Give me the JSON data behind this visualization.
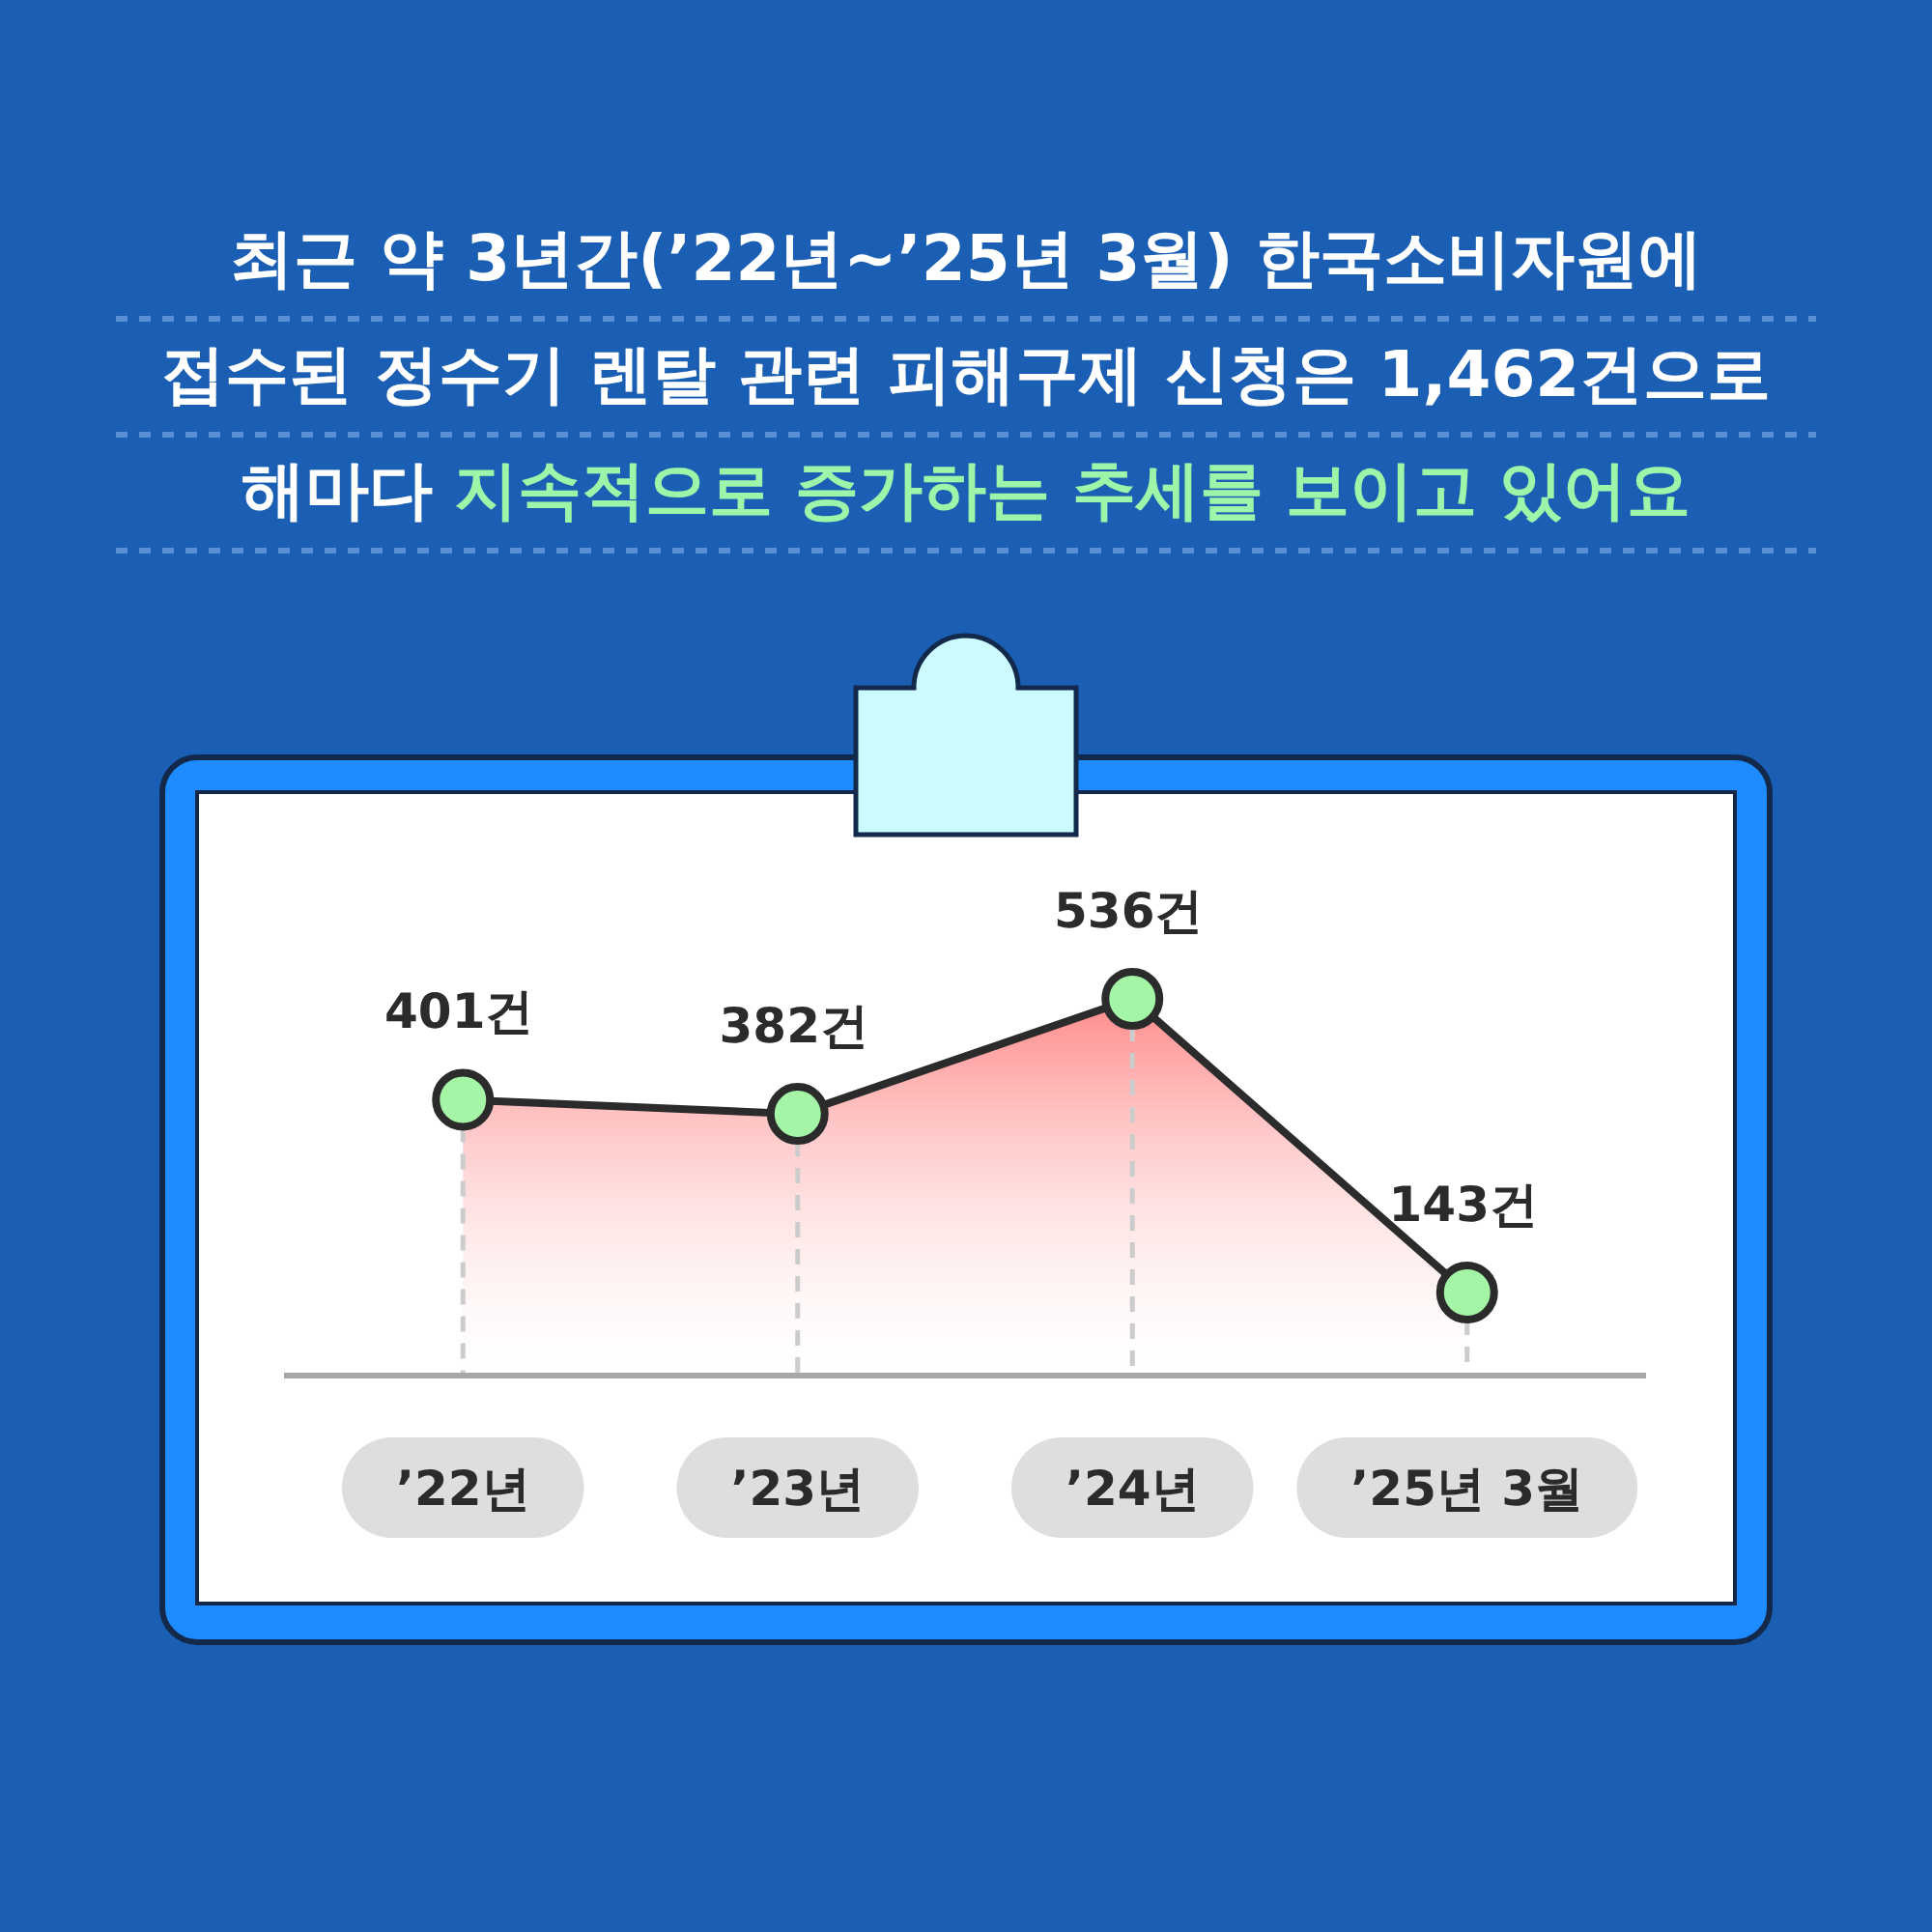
{
  "chart_data": {
    "type": "area",
    "title": "최근 약 3년간(’22년~’25년 3월) 한국소비자원에\n접수된 정수기 렌탈 관련 피해구제 신청은 1,462건으로",
    "subtitle": "해마다 지속적으로 증가하는 추세를 보이고 있어요",
    "categories": [
      "’22년",
      "’23년",
      "’24년",
      "’25년 3월"
    ],
    "series": [
      {
        "color": "#ff8a8a",
        "values": [
          401,
          382,
          536,
          143
        ],
        "value_labels": [
          "401건",
          "382건",
          "536건",
          "143건"
        ]
      }
    ],
    "marker": "circle",
    "line_style": "solid",
    "grid": "x"
  }
}
